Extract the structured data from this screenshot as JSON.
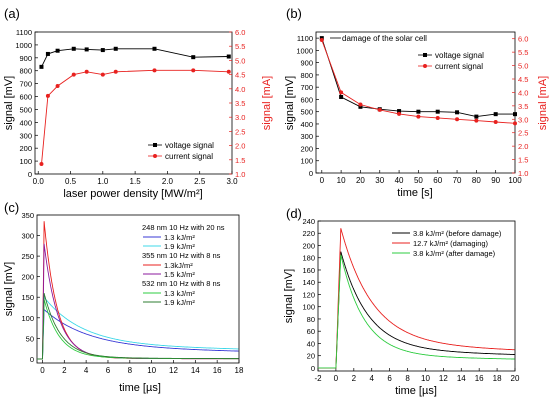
{
  "panels_meta": {
    "left_color": "#000000",
    "right_color": "#e8211f"
  },
  "chart_data": [
    {
      "panel_label": "(a)",
      "type": "line",
      "xlabel": "laser power density [MW/m²]",
      "ylabel_left": "signal [mV]",
      "ylabel_right": "signal [mA]",
      "xlim": [
        -0.05,
        3.0
      ],
      "ylim_left": [
        0,
        1100
      ],
      "ylim_right": [
        1.0,
        6.0
      ],
      "xticks": [
        "0.0",
        "0.5",
        "1.0",
        "1.5",
        "2.0",
        "2.5",
        "3.0"
      ],
      "yticks_left": [
        "0",
        "100",
        "200",
        "300",
        "400",
        "500",
        "600",
        "700",
        "800",
        "900",
        "1000",
        "1100"
      ],
      "yticks_right": [
        "1.0",
        "1.5",
        "2.0",
        "2.5",
        "3.0",
        "3.5",
        "4.0",
        "4.5",
        "5.0",
        "5.5",
        "6.0"
      ],
      "legend": [
        "voltage signal",
        "current signal"
      ],
      "series": [
        {
          "name": "voltage signal",
          "axis": "left",
          "color": "#000000",
          "marker": "square",
          "x": [
            0.05,
            0.15,
            0.3,
            0.55,
            0.75,
            1.0,
            1.2,
            1.8,
            2.4,
            2.95
          ],
          "y": [
            830,
            930,
            955,
            970,
            965,
            960,
            970,
            970,
            905,
            910
          ]
        },
        {
          "name": "current signal",
          "axis": "right",
          "color": "#e8211f",
          "marker": "circle",
          "x": [
            0.05,
            0.15,
            0.3,
            0.55,
            0.75,
            1.0,
            1.2,
            1.8,
            2.4,
            2.95
          ],
          "y": [
            1.35,
            3.75,
            4.1,
            4.5,
            4.6,
            4.5,
            4.6,
            4.65,
            4.65,
            4.6
          ]
        }
      ]
    },
    {
      "panel_label": "(b)",
      "type": "line",
      "xlabel": "time [s]",
      "ylabel_left": "signal [mV]",
      "ylabel_right": "signal [mA]",
      "xlim": [
        -3,
        100
      ],
      "ylim_left": [
        0,
        1150
      ],
      "ylim_right": [
        1.0,
        6.25
      ],
      "xticks": [
        "0",
        "10",
        "20",
        "30",
        "40",
        "50",
        "60",
        "70",
        "80",
        "90",
        "100"
      ],
      "yticks_left": [
        "0",
        "100",
        "200",
        "300",
        "400",
        "500",
        "600",
        "700",
        "800",
        "900",
        "1000",
        "1100"
      ],
      "yticks_right": [
        "1.0",
        "1.5",
        "2.0",
        "2.5",
        "3.0",
        "3.5",
        "4.0",
        "4.5",
        "5.0",
        "5.5",
        "6.0"
      ],
      "legend": [
        "voltage signal",
        "current signal"
      ],
      "annotation": "damage of the solar cell",
      "series": [
        {
          "name": "voltage signal",
          "axis": "left",
          "color": "#000000",
          "marker": "square",
          "x": [
            0,
            10,
            20,
            30,
            40,
            50,
            60,
            70,
            80,
            90,
            100
          ],
          "y": [
            1100,
            620,
            540,
            520,
            505,
            500,
            500,
            495,
            460,
            480,
            480
          ]
        },
        {
          "name": "current signal",
          "axis": "right",
          "color": "#e8211f",
          "marker": "circle",
          "x": [
            0,
            10,
            20,
            30,
            40,
            50,
            60,
            70,
            80,
            90,
            100
          ],
          "y": [
            5.95,
            4.0,
            3.55,
            3.35,
            3.2,
            3.1,
            3.05,
            3.0,
            2.95,
            2.9,
            2.85
          ]
        }
      ]
    },
    {
      "panel_label": "(c)",
      "type": "line",
      "xlabel": "time [µs]",
      "ylabel": "signal [mV]",
      "xlim": [
        -0.5,
        18
      ],
      "ylim": [
        -10,
        350
      ],
      "xticks": [
        "0",
        "2",
        "4",
        "6",
        "8",
        "10",
        "12",
        "14",
        "16",
        "18"
      ],
      "yticks": [
        "0",
        "50",
        "100",
        "150",
        "200",
        "250",
        "300",
        "350"
      ],
      "legend_groups": [
        {
          "title": "248 nm 10 Hz with 20 ns",
          "entries": [
            "1.3 kJ/m²",
            "1.9 kJ/m²"
          ]
        },
        {
          "title": "355 nm 10 Hz with 8 ns",
          "entries": [
            "1.3kJ/m²",
            "1.5 kJ/m²"
          ]
        },
        {
          "title": "532 nm 10 Hz with 8 ns",
          "entries": [
            "1.3 kJ/m²",
            "1.9 kJ/m²"
          ]
        }
      ],
      "series": [
        {
          "name": "1.3 kJ/m²",
          "color": "#3a3ad6",
          "peak": 120,
          "decay_fast": 4.0,
          "tail": 28,
          "tau_tail": 40
        },
        {
          "name": "1.9 kJ/m²",
          "color": "#3fd8e8",
          "peak": 150,
          "decay_fast": 3.5,
          "tail": 35,
          "tau_tail": 45
        },
        {
          "name": "1.3kJ/m²",
          "color": "#e8211f",
          "peak": 335,
          "decay_fast": 1.2,
          "tail": 2,
          "tau_tail": 10
        },
        {
          "name": "1.5 kJ/m²",
          "color": "#8b1a9e",
          "peak": 280,
          "decay_fast": 1.3,
          "tail": 2,
          "tau_tail": 10
        },
        {
          "name": "1.3 kJ/m²",
          "color": "#2ecc40",
          "peak": 145,
          "decay_fast": 1.4,
          "tail": 3,
          "tau_tail": 10
        },
        {
          "name": "1.9 kJ/m²",
          "color": "#2e7d32",
          "peak": 160,
          "decay_fast": 1.5,
          "tail": 4,
          "tau_tail": 10
        }
      ]
    },
    {
      "panel_label": "(d)",
      "type": "line",
      "xlabel": "time [µs]",
      "ylabel": "signal [mV]",
      "xlim": [
        -2,
        20
      ],
      "ylim": [
        -5,
        240
      ],
      "xticks": [
        "-2",
        "0",
        "2",
        "4",
        "6",
        "8",
        "10",
        "12",
        "14",
        "16",
        "18",
        "20"
      ],
      "yticks": [
        "0",
        "20",
        "40",
        "60",
        "80",
        "100",
        "120",
        "140",
        "160",
        "180",
        "200",
        "220",
        "240"
      ],
      "legend": [
        "3.8 kJ/m² (before damage)",
        "12.7 kJ/m² (damaging)",
        "3.8 kJ/m² (after damage)"
      ],
      "series": [
        {
          "name": "3.8 kJ/m² (before damage)",
          "color": "#000000",
          "peak": 190,
          "tau": 3.0,
          "tail": 30
        },
        {
          "name": "12.7 kJ/m² (damaging)",
          "color": "#e8211f",
          "peak": 228,
          "tau": 3.5,
          "tail": 40
        },
        {
          "name": "3.8 kJ/m² (after damage)",
          "color": "#2ecc40",
          "peak": 185,
          "tau": 2.6,
          "tail": 20
        }
      ]
    }
  ]
}
